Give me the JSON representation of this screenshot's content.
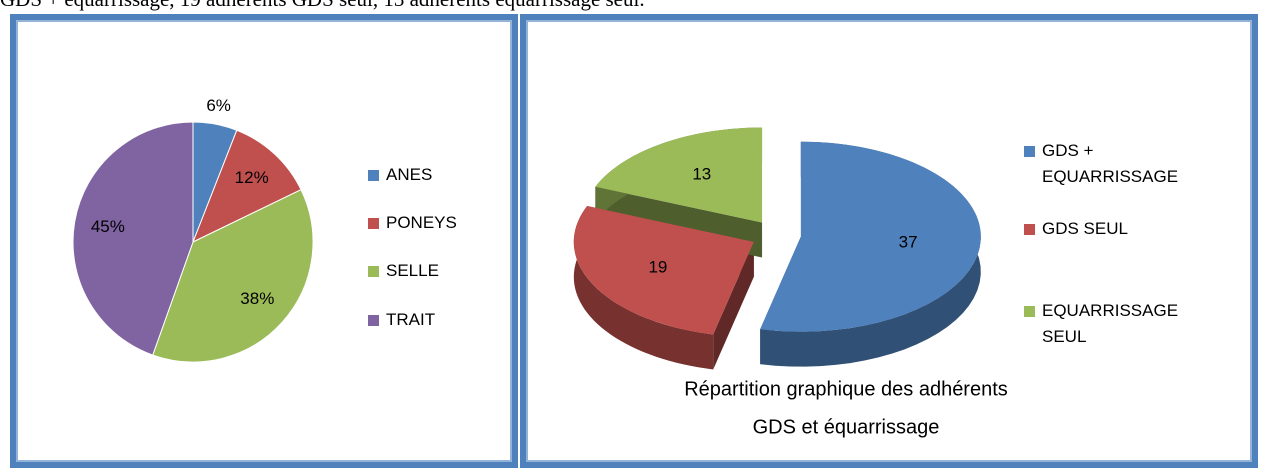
{
  "header_text": "GDS + équarrissage, 19 adhérents GDS seul, 13 adhérents équarrissage seul.",
  "chart_data": [
    {
      "type": "pie",
      "categories": [
        "ANES",
        "PONEYS",
        "SELLE",
        "TRAIT"
      ],
      "values": [
        6,
        12,
        38,
        45
      ],
      "value_labels": [
        "6%",
        "12%",
        "38%",
        "45%"
      ],
      "colors": [
        "#4f81bd",
        "#c0504d",
        "#9bbb59",
        "#8064a2"
      ],
      "three_d": false,
      "exploded": false,
      "legend": "right"
    },
    {
      "type": "pie",
      "title": [
        "Répartition graphique des adhérents",
        "GDS et équarrissage"
      ],
      "categories": [
        "GDS + EQUARRISSAGE",
        "GDS SEUL",
        "EQUARRISSAGE SEUL"
      ],
      "values": [
        37,
        19,
        13
      ],
      "colors": [
        "#4f81bd",
        "#c0504d",
        "#9bbb59"
      ],
      "three_d": true,
      "exploded": true,
      "legend": "right"
    }
  ]
}
